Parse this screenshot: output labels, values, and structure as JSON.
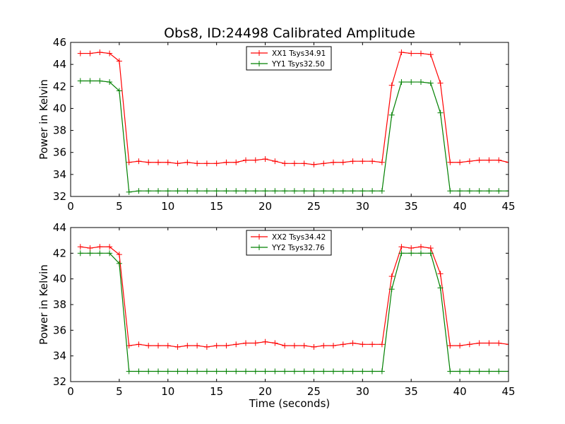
{
  "title": "Obs8, ID:24498 Calibrated Amplitude",
  "chart_data": [
    {
      "type": "line",
      "xlabel": "",
      "ylabel": "Power in Kelvin",
      "xlim": [
        0,
        45
      ],
      "ylim": [
        32,
        46
      ],
      "xticks": [
        "0",
        "5",
        "10",
        "15",
        "20",
        "25",
        "30",
        "35",
        "40",
        "45"
      ],
      "yticks": [
        "32",
        "34",
        "36",
        "38",
        "40",
        "42",
        "44",
        "46"
      ],
      "legend": "top-center",
      "grid": false,
      "x": [
        1,
        2,
        3,
        4,
        5,
        6,
        7,
        8,
        9,
        10,
        11,
        12,
        13,
        14,
        15,
        16,
        17,
        18,
        19,
        20,
        21,
        22,
        23,
        24,
        25,
        26,
        27,
        28,
        29,
        30,
        31,
        32,
        33,
        34,
        35,
        36,
        37,
        38,
        39,
        40,
        41,
        42,
        43,
        44,
        45
      ],
      "series": [
        {
          "name": "XX1 Tsys34.91",
          "color": "#ff0000",
          "values": [
            45.0,
            45.0,
            45.1,
            45.0,
            44.3,
            35.1,
            35.2,
            35.1,
            35.1,
            35.1,
            35.0,
            35.1,
            35.0,
            35.0,
            35.0,
            35.1,
            35.1,
            35.3,
            35.3,
            35.4,
            35.2,
            35.0,
            35.0,
            35.0,
            34.9,
            35.0,
            35.1,
            35.1,
            35.2,
            35.2,
            35.2,
            35.1,
            42.1,
            45.1,
            45.0,
            45.0,
            44.9,
            42.3,
            35.1,
            35.1,
            35.2,
            35.3,
            35.3,
            35.3,
            35.1
          ]
        },
        {
          "name": "YY1 Tsys32.50",
          "color": "#008000",
          "values": [
            42.5,
            42.5,
            42.5,
            42.4,
            41.6,
            32.4,
            32.5,
            32.5,
            32.5,
            32.5,
            32.5,
            32.5,
            32.5,
            32.5,
            32.5,
            32.5,
            32.5,
            32.5,
            32.5,
            32.5,
            32.5,
            32.5,
            32.5,
            32.5,
            32.5,
            32.5,
            32.5,
            32.5,
            32.5,
            32.5,
            32.5,
            32.5,
            39.4,
            42.4,
            42.4,
            42.4,
            42.3,
            39.6,
            32.5,
            32.5,
            32.5,
            32.5,
            32.5,
            32.5,
            32.5
          ]
        }
      ]
    },
    {
      "type": "line",
      "xlabel": "Time (seconds)",
      "ylabel": "Power in Kelvin",
      "xlim": [
        0,
        45
      ],
      "ylim": [
        32,
        44
      ],
      "xticks": [
        "0",
        "5",
        "10",
        "15",
        "20",
        "25",
        "30",
        "35",
        "40",
        "45"
      ],
      "yticks": [
        "32",
        "34",
        "36",
        "38",
        "40",
        "42",
        "44"
      ],
      "legend": "top-center",
      "grid": false,
      "x": [
        1,
        2,
        3,
        4,
        5,
        6,
        7,
        8,
        9,
        10,
        11,
        12,
        13,
        14,
        15,
        16,
        17,
        18,
        19,
        20,
        21,
        22,
        23,
        24,
        25,
        26,
        27,
        28,
        29,
        30,
        31,
        32,
        33,
        34,
        35,
        36,
        37,
        38,
        39,
        40,
        41,
        42,
        43,
        44,
        45
      ],
      "series": [
        {
          "name": "XX2 Tsys34.42",
          "color": "#ff0000",
          "values": [
            42.5,
            42.4,
            42.5,
            42.5,
            41.9,
            34.8,
            34.9,
            34.8,
            34.8,
            34.8,
            34.7,
            34.8,
            34.8,
            34.7,
            34.8,
            34.8,
            34.9,
            35.0,
            35.0,
            35.1,
            35.0,
            34.8,
            34.8,
            34.8,
            34.7,
            34.8,
            34.8,
            34.9,
            35.0,
            34.9,
            34.9,
            34.9,
            40.2,
            42.5,
            42.4,
            42.5,
            42.4,
            40.4,
            34.8,
            34.8,
            34.9,
            35.0,
            35.0,
            35.0,
            34.9
          ]
        },
        {
          "name": "YY2 Tsys32.76",
          "color": "#008000",
          "values": [
            42.0,
            42.0,
            42.0,
            42.0,
            41.2,
            32.8,
            32.8,
            32.8,
            32.8,
            32.8,
            32.8,
            32.8,
            32.8,
            32.8,
            32.8,
            32.8,
            32.8,
            32.8,
            32.8,
            32.8,
            32.8,
            32.8,
            32.8,
            32.8,
            32.8,
            32.8,
            32.8,
            32.8,
            32.8,
            32.8,
            32.8,
            32.8,
            39.2,
            42.0,
            42.0,
            42.0,
            42.0,
            39.3,
            32.8,
            32.8,
            32.8,
            32.8,
            32.8,
            32.8,
            32.8
          ]
        }
      ]
    }
  ]
}
